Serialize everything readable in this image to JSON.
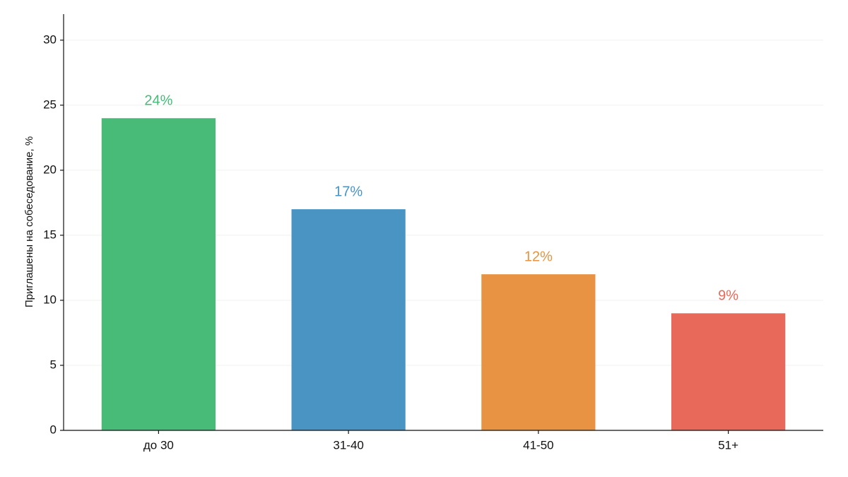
{
  "chart_data": {
    "type": "bar",
    "y_label": "Приглашены на собеседование, %",
    "categories": [
      "до 30",
      "31-40",
      "41-50",
      "51+"
    ],
    "values": [
      24,
      17,
      12,
      9
    ],
    "value_labels": [
      "24%",
      "17%",
      "12%",
      "9%"
    ],
    "colors": [
      "#48bb78",
      "#4a94c4",
      "#e89343",
      "#e8695a"
    ],
    "ylim": [
      0,
      32
    ],
    "yticks": [
      0,
      5,
      10,
      15,
      20,
      25,
      30
    ],
    "grid": true
  }
}
